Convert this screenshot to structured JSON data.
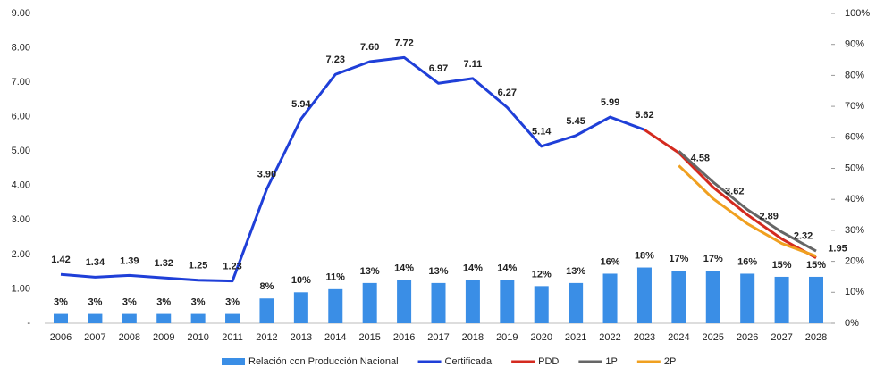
{
  "chart_data": {
    "type": "bar-line",
    "categories": [
      "2006",
      "2007",
      "2008",
      "2009",
      "2010",
      "2011",
      "2012",
      "2013",
      "2014",
      "2015",
      "2016",
      "2017",
      "2018",
      "2019",
      "2020",
      "2021",
      "2022",
      "2023",
      "2024",
      "2025",
      "2026",
      "2027",
      "2028"
    ],
    "ylim": [
      0,
      9
    ],
    "yticks": [
      {
        "value": 0,
        "label": "-"
      },
      {
        "value": 1,
        "label": "1.00"
      },
      {
        "value": 2,
        "label": "2.00"
      },
      {
        "value": 3,
        "label": "3.00"
      },
      {
        "value": 4,
        "label": "4.00"
      },
      {
        "value": 5,
        "label": "5.00"
      },
      {
        "value": 6,
        "label": "6.00"
      },
      {
        "value": 7,
        "label": "7.00"
      },
      {
        "value": 8,
        "label": "8.00"
      },
      {
        "value": 9,
        "label": "9.00"
      }
    ],
    "y2lim": [
      0,
      100
    ],
    "y2ticks": [
      {
        "value": 0,
        "label": "0%"
      },
      {
        "value": 10,
        "label": "10%"
      },
      {
        "value": 20,
        "label": "20%"
      },
      {
        "value": 30,
        "label": "30%"
      },
      {
        "value": 40,
        "label": "40%"
      },
      {
        "value": 50,
        "label": "50%"
      },
      {
        "value": 60,
        "label": "60%"
      },
      {
        "value": 70,
        "label": "70%"
      },
      {
        "value": 80,
        "label": "80%"
      },
      {
        "value": 90,
        "label": "90%"
      },
      {
        "value": 100,
        "label": "100%"
      }
    ],
    "series": [
      {
        "name": "Relación con Producción Nacional",
        "type": "bar",
        "axis": "y2",
        "color": "#3a8ee6",
        "values": [
          3,
          3,
          3,
          3,
          3,
          3,
          8,
          10,
          11,
          13,
          14,
          13,
          14,
          14,
          12,
          13,
          16,
          18,
          17,
          17,
          16,
          15,
          15
        ],
        "value_labels": [
          "3%",
          "3%",
          "3%",
          "3%",
          "3%",
          "3%",
          "8%",
          "10%",
          "11%",
          "13%",
          "14%",
          "13%",
          "14%",
          "14%",
          "12%",
          "13%",
          "16%",
          "18%",
          "17%",
          "17%",
          "16%",
          "15%",
          "15%"
        ]
      },
      {
        "name": "Certificada",
        "type": "line",
        "color": "#1f3fd8",
        "values": [
          1.42,
          1.34,
          1.39,
          1.32,
          1.25,
          1.23,
          3.9,
          5.94,
          7.23,
          7.6,
          7.72,
          6.97,
          7.11,
          6.27,
          5.14,
          5.45,
          5.99,
          5.62,
          null,
          null,
          null,
          null,
          null
        ],
        "value_labels": [
          "1.42",
          "1.34",
          "1.39",
          "1.32",
          "1.25",
          "1.23",
          "3.90",
          "5.94",
          "7.23",
          "7.60",
          "7.72",
          "6.97",
          "7.11",
          "6.27",
          "5.14",
          "5.45",
          "5.99",
          "5.62",
          null,
          null,
          null,
          null,
          null
        ]
      },
      {
        "name": "PDD",
        "type": "line",
        "color": "#d42a1f",
        "values": [
          null,
          null,
          null,
          null,
          null,
          null,
          null,
          null,
          null,
          null,
          null,
          null,
          null,
          null,
          null,
          null,
          null,
          5.62,
          4.95,
          3.95,
          3.15,
          2.45,
          1.9
        ]
      },
      {
        "name": "1P",
        "type": "line",
        "color": "#666666",
        "values": [
          null,
          null,
          null,
          null,
          null,
          null,
          null,
          null,
          null,
          null,
          null,
          null,
          null,
          null,
          null,
          null,
          null,
          null,
          5.0,
          4.1,
          3.3,
          2.65,
          2.1
        ]
      },
      {
        "name": "2P",
        "type": "line",
        "color": "#f0a020",
        "values": [
          null,
          null,
          null,
          null,
          null,
          null,
          null,
          null,
          null,
          null,
          null,
          null,
          null,
          null,
          null,
          null,
          null,
          null,
          4.58,
          3.62,
          2.89,
          2.32,
          1.95
        ]
      }
    ]
  }
}
